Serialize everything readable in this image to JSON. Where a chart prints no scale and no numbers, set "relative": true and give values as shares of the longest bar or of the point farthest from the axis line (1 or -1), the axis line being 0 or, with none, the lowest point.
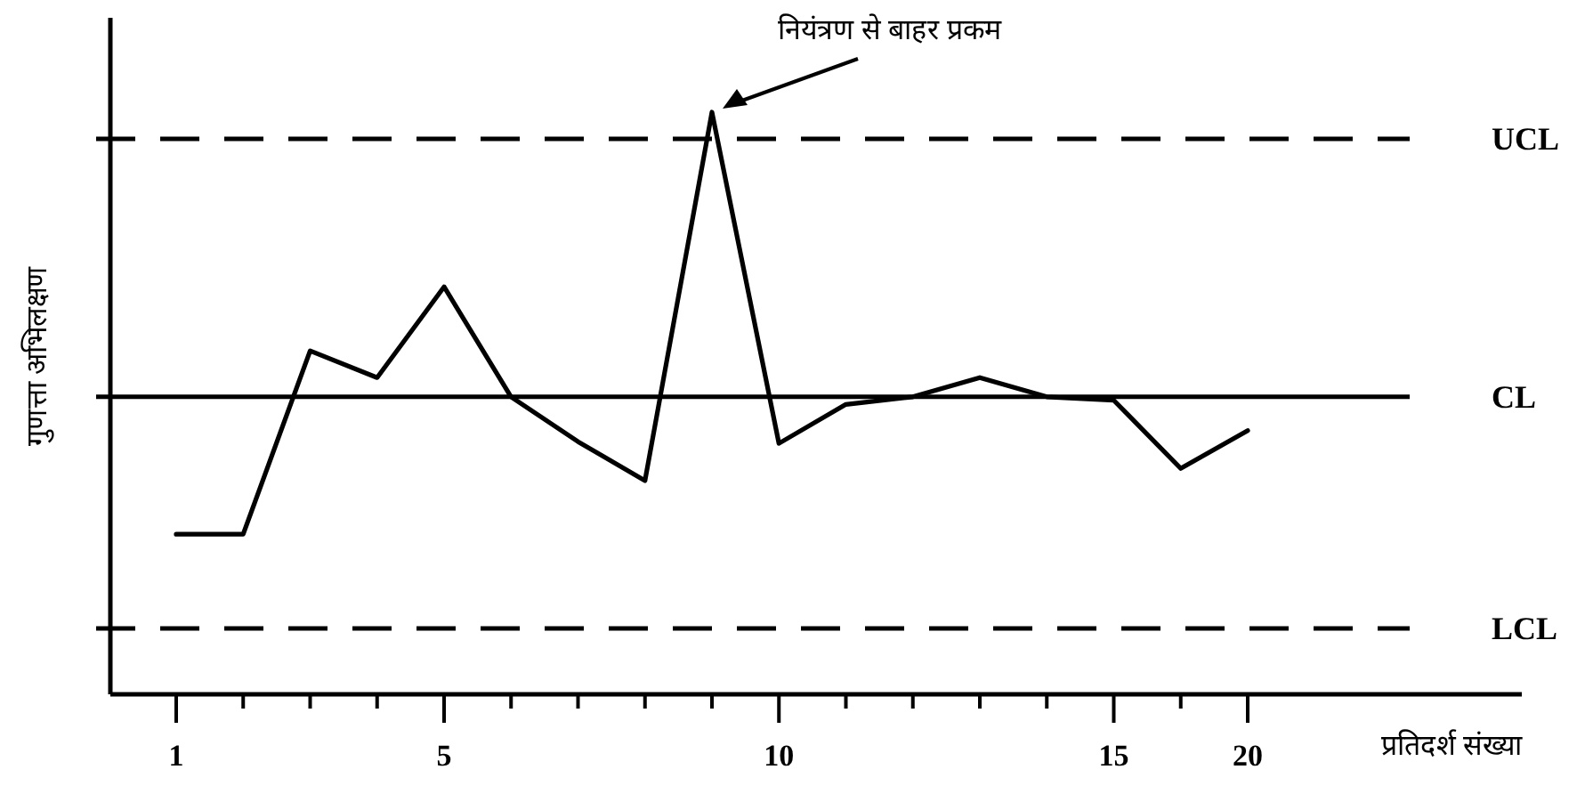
{
  "chart_data": {
    "type": "line",
    "relative": true,
    "xlabel": "प्रतिदर्श संख्या",
    "ylabel": "गुणत्ता अभिलक्षण",
    "categories": [
      "1",
      null,
      null,
      null,
      "5",
      null,
      null,
      null,
      null,
      "10",
      null,
      null,
      null,
      null,
      "15",
      null,
      "20"
    ],
    "series": [
      {
        "color": "#000000",
        "values": [
          0.275,
          0.275,
          0.59,
          0.544,
          0.7,
          0.511,
          0.434,
          0.367,
          1,
          0.431,
          0.498,
          0.511,
          0.544,
          0.511,
          0.505,
          0.388,
          0.453
        ]
      }
    ],
    "ref_lines": [
      {
        "axis": "y",
        "value": 0.954,
        "label": "UCL",
        "line_style": "dashed",
        "color": "#000000"
      },
      {
        "axis": "y",
        "value": 0.511,
        "label": "CL",
        "line_style": "solid",
        "color": "#000000"
      },
      {
        "axis": "y",
        "value": 0.113,
        "label": "LCL",
        "line_style": "dashed",
        "color": "#000000"
      }
    ],
    "annotations": [
      "नियंत्रण से बाहर प्रकम"
    ],
    "marker": "none",
    "line_style": "solid"
  }
}
